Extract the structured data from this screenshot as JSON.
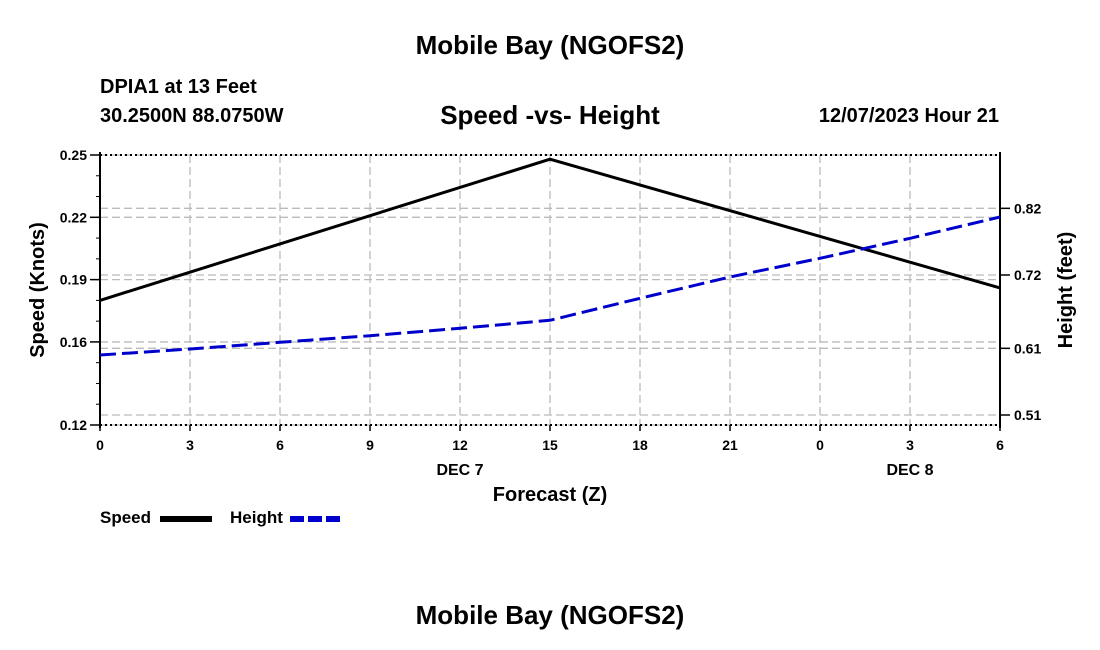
{
  "header": {
    "title": "Mobile Bay (NGOFS2)",
    "station": "DPIA1 at 13 Feet",
    "coordinates": "30.2500N  88.0750W",
    "subtitle": "Speed -vs- Height",
    "datetime": "12/07/2023 Hour 21"
  },
  "footer": {
    "title": "Mobile Bay (NGOFS2)"
  },
  "chart_data": {
    "type": "line",
    "title": "Speed -vs- Height",
    "xlabel": "Forecast (Z)",
    "ylabel": "Speed (Knots)",
    "y2label": "Height (feet)",
    "x": [
      0,
      3,
      6,
      9,
      12,
      15,
      18,
      21,
      24,
      27,
      30
    ],
    "xlim": [
      0,
      30
    ],
    "x_tick_labels": [
      "0",
      "3",
      "6",
      "9",
      "12",
      "15",
      "18",
      "21",
      "0",
      "3",
      "6"
    ],
    "date_labels": [
      {
        "label": "DEC 7",
        "x": 12
      },
      {
        "label": "DEC 8",
        "x": 27
      }
    ],
    "ylim": [
      0.12,
      0.25
    ],
    "y_ticks": [
      0.12,
      0.16,
      0.19,
      0.22,
      0.25
    ],
    "y2lim": [
      0.495,
      0.9
    ],
    "y2_ticks": [
      0.51,
      0.61,
      0.72,
      0.82
    ],
    "grid": true,
    "legend_position": "bottom-left",
    "series": [
      {
        "name": "Speed",
        "axis": "left",
        "color": "#000000",
        "dashed": false,
        "points": [
          [
            0,
            0.18
          ],
          [
            15,
            0.248
          ],
          [
            30,
            0.186
          ]
        ]
      },
      {
        "name": "Height",
        "axis": "right",
        "color": "#0000cc",
        "dashed": true,
        "points": [
          [
            0,
            0.6
          ],
          [
            3,
            0.609
          ],
          [
            6,
            0.619
          ],
          [
            9,
            0.629
          ],
          [
            12,
            0.64
          ],
          [
            15,
            0.652
          ],
          [
            18,
            0.685
          ],
          [
            21,
            0.717
          ],
          [
            24,
            0.745
          ],
          [
            27,
            0.775
          ],
          [
            30,
            0.807
          ]
        ]
      }
    ]
  }
}
